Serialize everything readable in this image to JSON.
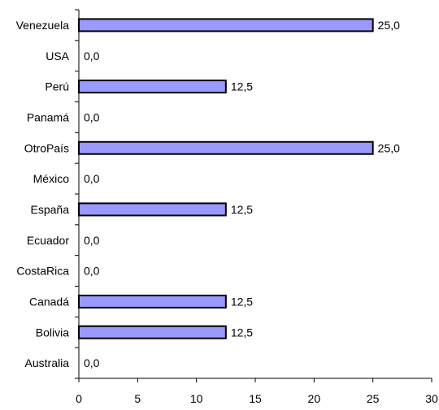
{
  "chart_data": {
    "type": "bar",
    "orientation": "horizontal",
    "title": "",
    "xlabel": "",
    "ylabel": "",
    "xlim": [
      0,
      30
    ],
    "x_ticks": [
      0,
      5,
      10,
      15,
      20,
      25,
      30
    ],
    "x_tick_labels": [
      "0",
      "5",
      "10",
      "15",
      "20",
      "25",
      "30"
    ],
    "grid": false,
    "legend": "none",
    "bar_color": "#9999FF",
    "bar_edge_color": "#000000",
    "categories": [
      "Venezuela",
      "USA",
      "Perú",
      "Panamá",
      "OtroPaís",
      "México",
      "España",
      "Ecuador",
      "CostaRica",
      "Canadá",
      "Bolivia",
      "Australia"
    ],
    "values": [
      25.0,
      0.0,
      12.5,
      0.0,
      25.0,
      0.0,
      12.5,
      0.0,
      0.0,
      12.5,
      12.5,
      0.0
    ],
    "data_labels": [
      "25,0",
      "0,0",
      "12,5",
      "0,0",
      "25,0",
      "0,0",
      "12,5",
      "0,0",
      "0,0",
      "12,5",
      "12,5",
      "0,0"
    ]
  }
}
